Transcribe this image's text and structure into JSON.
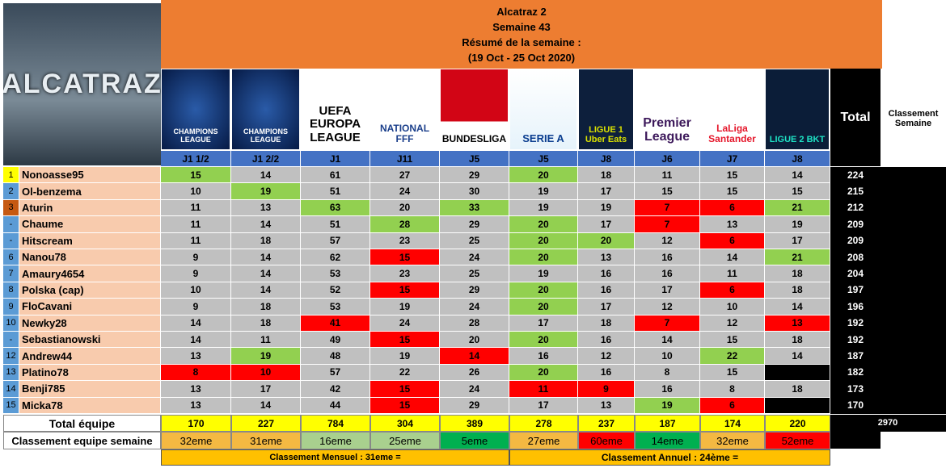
{
  "logo_text": "ALCATRAZ",
  "header": {
    "title": "Alcatraz 2",
    "week": "Semaine 43",
    "summary": "Résumé de la semaine  :",
    "period": "(19 Oct - 25 Oct 2020)"
  },
  "table": {
    "logos": [
      "CHAMPIONS LEAGUE",
      "CHAMPIONS LEAGUE",
      "UEFA EUROPA LEAGUE",
      "NATIONAL FFF",
      "BUNDESLIGA",
      "SERIE A",
      "LIGUE 1 Uber Eats",
      "Premier League",
      "LaLiga Santander",
      "LIGUE 2 BKT"
    ],
    "columns": [
      "J1 1/2",
      "J1 2/2",
      "J1",
      "J11",
      "J5",
      "J5",
      "J8",
      "J6",
      "J7",
      "J8"
    ],
    "total_header": "Total",
    "rank_header": "Classement Semaine",
    "rows": [
      {
        "rank": "1",
        "name": "Nonoasse95",
        "scores": [
          15,
          14,
          61,
          27,
          29,
          20,
          18,
          11,
          15,
          14
        ],
        "total": 224
      },
      {
        "rank": "2",
        "name": "Ol-benzema",
        "scores": [
          10,
          19,
          51,
          24,
          30,
          19,
          17,
          15,
          15,
          15
        ],
        "total": 215
      },
      {
        "rank": "3",
        "name": "Aturin",
        "scores": [
          11,
          13,
          63,
          20,
          33,
          19,
          19,
          7,
          6,
          21
        ],
        "total": 212
      },
      {
        "rank": "-",
        "name": "Chaume",
        "scores": [
          11,
          14,
          51,
          28,
          29,
          20,
          17,
          7,
          13,
          19
        ],
        "total": 209
      },
      {
        "rank": "-",
        "name": "Hitscream",
        "scores": [
          11,
          18,
          57,
          23,
          25,
          20,
          20,
          12,
          6,
          17
        ],
        "total": 209
      },
      {
        "rank": "6",
        "name": "Nanou78",
        "scores": [
          9,
          14,
          62,
          15,
          24,
          20,
          13,
          16,
          14,
          21
        ],
        "total": 208
      },
      {
        "rank": "7",
        "name": "Amaury4654",
        "scores": [
          9,
          14,
          53,
          23,
          25,
          19,
          16,
          16,
          11,
          18
        ],
        "total": 204
      },
      {
        "rank": "8",
        "name": "Polska (cap)",
        "scores": [
          10,
          14,
          52,
          15,
          29,
          20,
          16,
          17,
          6,
          18
        ],
        "total": 197
      },
      {
        "rank": "9",
        "name": "FloCavani",
        "scores": [
          9,
          18,
          53,
          19,
          24,
          20,
          17,
          12,
          10,
          14
        ],
        "total": 196
      },
      {
        "rank": "10",
        "name": "Newky28",
        "scores": [
          14,
          18,
          41,
          24,
          28,
          17,
          18,
          7,
          12,
          13
        ],
        "total": 192
      },
      {
        "rank": "-",
        "name": "Sebastianowski",
        "scores": [
          14,
          11,
          49,
          15,
          20,
          20,
          16,
          14,
          15,
          18
        ],
        "total": 192
      },
      {
        "rank": "12",
        "name": "Andrew44",
        "scores": [
          13,
          19,
          48,
          19,
          14,
          16,
          12,
          10,
          22,
          14
        ],
        "total": 187
      },
      {
        "rank": "13",
        "name": "Platino78",
        "scores": [
          8,
          10,
          57,
          22,
          26,
          20,
          16,
          8,
          15,
          null
        ],
        "total": 182
      },
      {
        "rank": "14",
        "name": "Benji785",
        "scores": [
          13,
          17,
          42,
          15,
          24,
          11,
          9,
          16,
          8,
          18
        ],
        "total": 173
      },
      {
        "rank": "15",
        "name": "Micka78",
        "scores": [
          13,
          14,
          44,
          15,
          29,
          17,
          13,
          19,
          6,
          null
        ],
        "total": 170
      }
    ],
    "team_total": {
      "label": "Total équipe",
      "values": [
        170,
        227,
        784,
        304,
        389,
        278,
        237,
        187,
        174,
        220
      ],
      "grand_total": 2970
    },
    "team_rank": {
      "label": "Classement equipe semaine",
      "values": [
        "32eme",
        "31eme",
        "16eme",
        "25eme",
        "5eme",
        "27eme",
        "60eme",
        "14eme",
        "32eme",
        "52eme"
      ]
    },
    "monthly": "Classement Mensuel : 31eme  =",
    "yearly": "Classement Annuel : 24ème    ="
  }
}
